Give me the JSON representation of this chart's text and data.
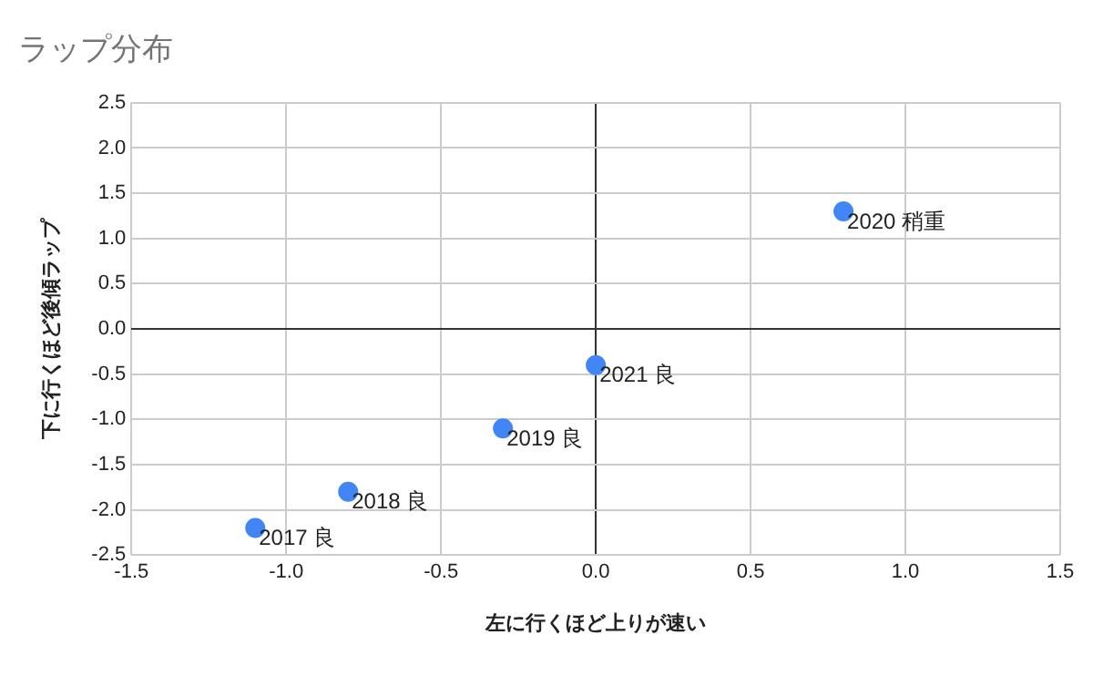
{
  "chart_data": {
    "type": "scatter",
    "title": "ラップ分布",
    "xlabel": "左に行くほど上りが速い",
    "ylabel": "下に行くほど後傾ラップ",
    "x": [
      -1.1,
      -0.8,
      -0.3,
      0.8,
      0
    ],
    "series": [
      {
        "color": "#4285f4",
        "values": [
          -2.2,
          -1.8,
          -1.1,
          1.3,
          -0.4
        ]
      }
    ],
    "annotations": [
      {
        "text": "2017 良",
        "x": -1.1,
        "y": -2.2
      },
      {
        "text": "2018 良",
        "x": -0.8,
        "y": -1.8
      },
      {
        "text": "2019 良",
        "x": -0.3,
        "y": -1.1
      },
      {
        "text": "2020 稍重",
        "x": 0.8,
        "y": 1.3
      },
      {
        "text": "2021 良",
        "x": 0,
        "y": -0.4
      }
    ],
    "xlim": [
      -1.5,
      1.5
    ],
    "xticks": [
      -1.5,
      {
        "value": -1,
        "label": "-1.0"
      },
      -0.5,
      {
        "value": 0,
        "label": "0.0"
      },
      0.5,
      {
        "value": 1,
        "label": "1.0"
      },
      1.5
    ],
    "ylim": [
      -2.5,
      2.5
    ],
    "yticks": [
      -2.5,
      {
        "value": -2,
        "label": "-2.0"
      },
      -1.5,
      {
        "value": -1,
        "label": "-1.0"
      },
      -0.5,
      {
        "value": 0,
        "label": "0.0"
      },
      0.5,
      {
        "value": 1,
        "label": "1.0"
      },
      1.5,
      {
        "value": 2,
        "label": "2.0"
      },
      2.5
    ],
    "grid": true,
    "legend": false,
    "marker": "circle"
  }
}
